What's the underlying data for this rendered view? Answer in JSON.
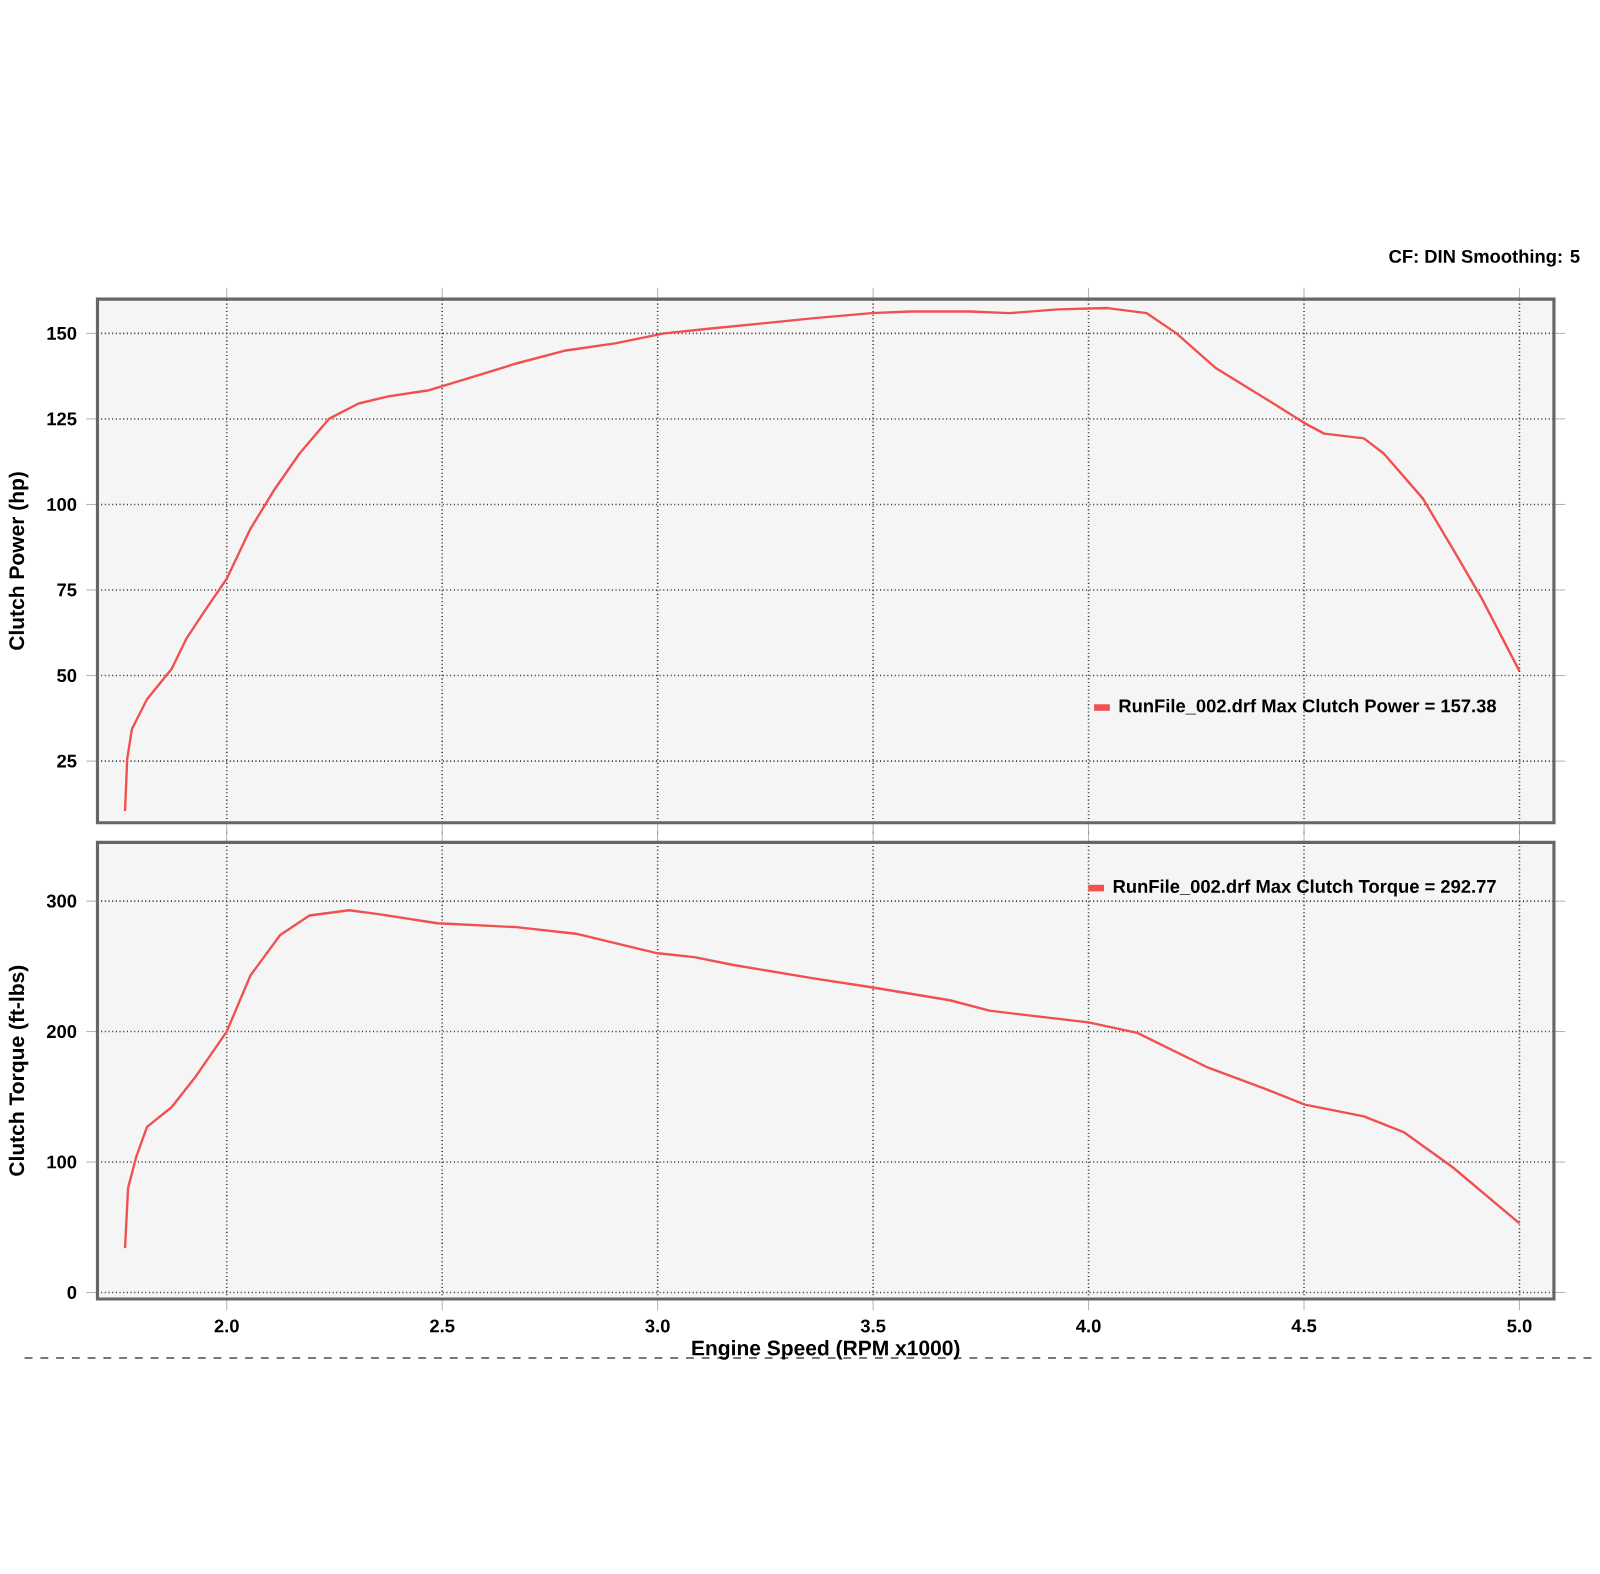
{
  "chart_data": [
    {
      "type": "line",
      "ylabel": "Clutch Power (hp)",
      "annotations": [
        "CF: DIN  Smoothing: 5"
      ],
      "xlim": [
        1.7,
        5.08
      ],
      "ylim": [
        7,
        160
      ],
      "xticks": [
        2,
        2.5,
        3,
        3.5,
        4,
        4.5,
        5
      ],
      "yticks": [
        25,
        50,
        75,
        100,
        125,
        150
      ],
      "tick_labels": "y",
      "grid": true,
      "legend": "bottom right",
      "series": [
        {
          "name": "RunFile_002.drf Max Clutch Power = 157.38",
          "color": "#f05050",
          "x": [
            1.764,
            1.769,
            1.78,
            1.815,
            1.872,
            1.906,
            1.952,
            2.0,
            2.055,
            2.112,
            2.169,
            2.238,
            2.306,
            2.375,
            2.466,
            2.558,
            2.672,
            2.787,
            2.901,
            3.015,
            3.13,
            3.244,
            3.358,
            3.496,
            3.587,
            3.724,
            3.816,
            3.93,
            4.044,
            4.135,
            4.204,
            4.296,
            4.41,
            4.502,
            4.547,
            4.639,
            4.685,
            4.776,
            4.845,
            4.913,
            5.0
          ],
          "values": [
            10.4,
            25.6,
            34.4,
            43.1,
            51.9,
            60.7,
            69.5,
            78.3,
            92.9,
            104.6,
            114.9,
            125.1,
            129.5,
            131.6,
            133.3,
            136.8,
            141.2,
            145.0,
            147.1,
            150.0,
            151.5,
            152.9,
            154.4,
            155.9,
            156.4,
            156.4,
            155.9,
            157.0,
            157.4,
            155.9,
            150.0,
            139.8,
            131.0,
            123.7,
            120.7,
            119.3,
            114.9,
            101.7,
            87.1,
            72.4,
            51.3
          ]
        }
      ]
    },
    {
      "type": "line",
      "xlabel": "Engine Speed (RPM x1000)",
      "ylabel": "Clutch Torque (ft-lbs)",
      "xlim": [
        1.7,
        5.08
      ],
      "ylim": [
        -5,
        345
      ],
      "xticks": [
        {
          "value": 2.0,
          "label": "2.0"
        },
        2.5,
        {
          "value": 3.0,
          "label": "3.0"
        },
        3.5,
        {
          "value": 4.0,
          "label": "4.0"
        },
        4.5,
        {
          "value": 5.0,
          "label": "5.0"
        }
      ],
      "yticks": [
        0,
        100,
        200,
        300
      ],
      "grid": true,
      "legend": "top right",
      "series": [
        {
          "name": "RunFile_002.drf Max Clutch Torque = 292.77",
          "color": "#f05050",
          "x": [
            1.764,
            1.771,
            1.79,
            1.815,
            1.872,
            1.929,
            2.0,
            2.055,
            2.124,
            2.192,
            2.284,
            2.352,
            2.489,
            2.672,
            2.81,
            3.0,
            3.085,
            3.176,
            3.358,
            3.496,
            3.678,
            3.77,
            4.0,
            4.113,
            4.273,
            4.41,
            4.502,
            4.639,
            4.731,
            4.845,
            5.0
          ],
          "values": [
            34,
            80,
            104,
            127,
            142,
            166,
            200,
            243,
            274,
            289,
            293,
            290,
            283,
            280,
            275,
            260,
            257,
            251,
            241,
            234,
            224,
            216,
            207,
            199,
            173,
            156,
            144,
            135,
            123,
            96,
            53
          ]
        }
      ]
    }
  ]
}
